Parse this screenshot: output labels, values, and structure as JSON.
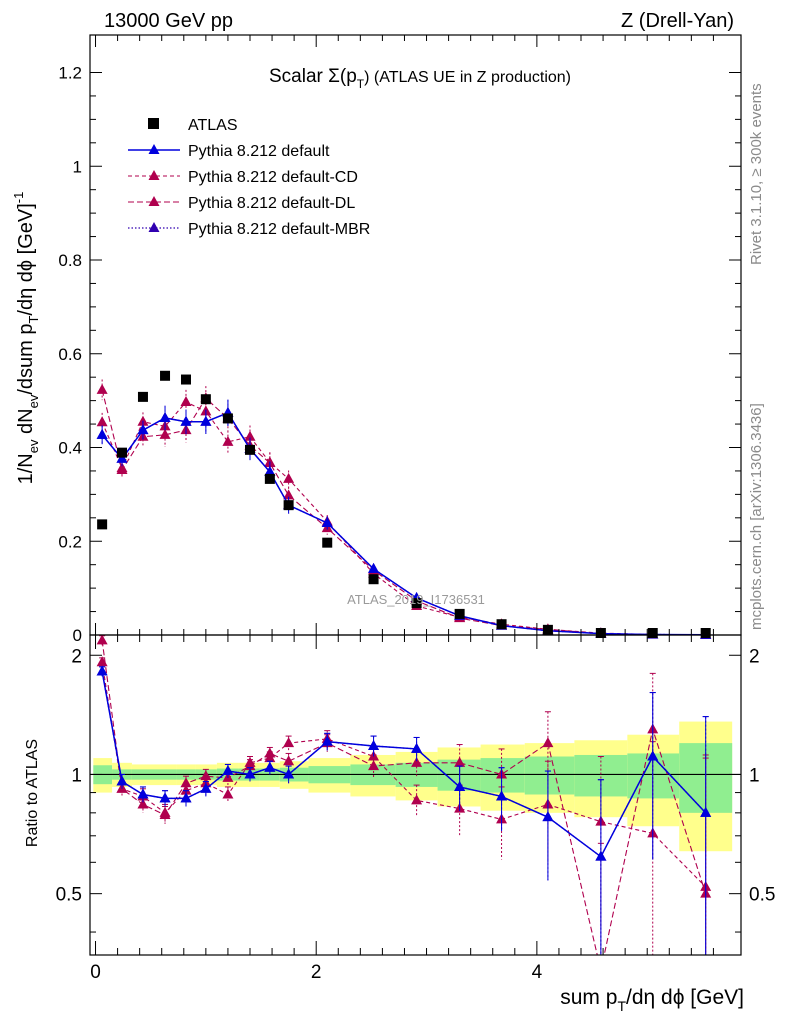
{
  "header": {
    "left": "13000 GeV pp",
    "right": "Z (Drell-Yan)"
  },
  "side": {
    "rivet": "Rivet 3.1.10, ≥ 300k events",
    "mcplots": "mcplots.cern.ch [arXiv:1306.3436]"
  },
  "watermark": "ATLAS_2019_I1736531",
  "colors": {
    "atlas": "#000000",
    "default": "#0000dd",
    "cd": "#b0004e",
    "dl": "#b0004e",
    "mbr": "#3000b0",
    "band_green": "#90ee90",
    "band_yellow": "#ffff8c"
  },
  "chart_data": [
    {
      "type": "scatter",
      "title": "Scalar Σ(p_T) (ATLAS UE in Z production)",
      "title_parts": {
        "prefix": "Scalar ",
        "sigma": "Σ(p",
        "sub": "T",
        "suffix": ") (ATLAS UE in Z production)"
      },
      "ylabel": "1/N_ev dN_ev/dsum p_T/dη dϕ [GeV]^-1",
      "ylim": [
        0,
        1.28
      ],
      "xlim": [
        -0.05,
        5.85
      ],
      "yticks": [
        0,
        0.2,
        0.4,
        0.6,
        0.8,
        1,
        1.2
      ],
      "ytick_labels": [
        "0",
        "0.2",
        "0.4",
        "0.6",
        "0.8",
        "1",
        "1.2"
      ],
      "legend_position": "top-left",
      "x": [
        0.06,
        0.24,
        0.43,
        0.63,
        0.82,
        1.0,
        1.2,
        1.4,
        1.58,
        1.75,
        2.1,
        2.52,
        2.91,
        3.3,
        3.68,
        4.1,
        4.58,
        5.05,
        5.53
      ],
      "series": [
        {
          "name": "ATLAS",
          "key": "atlas",
          "values": [
            0.236,
            0.389,
            0.508,
            0.553,
            0.545,
            0.503,
            0.462,
            0.395,
            0.333,
            0.277,
            0.197,
            0.119,
            0.068,
            0.045,
            0.023,
            0.011,
            0.004,
            0.001,
            0.0005
          ]
        },
        {
          "name": "Pythia 8.212 default",
          "key": "default",
          "values": [
            0.427,
            0.376,
            0.437,
            0.463,
            0.455,
            0.455,
            0.474,
            0.397,
            0.348,
            0.277,
            0.239,
            0.141,
            0.079,
            0.041,
            0.02,
            0.009,
            0.003,
            0.001,
            0.0005
          ],
          "errors": [
            0.02,
            0.016,
            0.02,
            0.026,
            0.026,
            0.026,
            0.028,
            0.024,
            0.022,
            0.018,
            0.014,
            0.008,
            0.005,
            0.003,
            0.002,
            0.001,
            0.0008,
            0.0006,
            0.0005
          ]
        },
        {
          "name": "Pythia 8.212 default-CD",
          "key": "cd",
          "values": [
            0.454,
            0.356,
            0.455,
            0.445,
            0.497,
            0.477,
            0.412,
            0.423,
            0.368,
            0.333,
            0.242,
            0.131,
            0.062,
            0.038,
            0.023,
            0.012,
            0.004,
            0.001,
            0.0002
          ],
          "errors": [
            0.02,
            0.016,
            0.02,
            0.026,
            0.026,
            0.026,
            0.024,
            0.024,
            0.022,
            0.018,
            0.014,
            0.008,
            0.005,
            0.003,
            0.002,
            0.001,
            0.0008,
            0.0006,
            0.0005
          ]
        },
        {
          "name": "Pythia 8.212 default-DL",
          "key": "dl",
          "values": [
            0.523,
            0.352,
            0.423,
            0.427,
            0.437,
            0.505,
            0.462,
            0.404,
            0.367,
            0.298,
            0.228,
            0.138,
            0.073,
            0.036,
            0.02,
            0.012,
            0.003,
            0.0008,
            0.0003
          ],
          "errors": [
            0.022,
            0.016,
            0.02,
            0.026,
            0.026,
            0.026,
            0.026,
            0.024,
            0.022,
            0.018,
            0.014,
            0.008,
            0.005,
            0.003,
            0.002,
            0.001,
            0.0008,
            0.0006,
            0.0005
          ]
        },
        {
          "name": "Pythia 8.212 default-MBR",
          "key": "mbr",
          "values": [
            0.427,
            0.376,
            0.437,
            0.463,
            0.455,
            0.455,
            0.474,
            0.397,
            0.348,
            0.277,
            0.239,
            0.141,
            0.079,
            0.041,
            0.02,
            0.009,
            0.003,
            0.001,
            0.0005
          ],
          "errors": [
            0.02,
            0.016,
            0.02,
            0.026,
            0.026,
            0.026,
            0.028,
            0.024,
            0.022,
            0.018,
            0.014,
            0.008,
            0.005,
            0.003,
            0.002,
            0.001,
            0.0008,
            0.0006,
            0.0005
          ]
        }
      ]
    },
    {
      "type": "scatter",
      "title": "",
      "ylabel": "Ratio to ATLAS",
      "xlabel": "sum p_T/dη dϕ [GeV]",
      "xlabel_parts": {
        "prefix": "sum p",
        "sub": "T",
        "suffix": "/dη dϕ [GeV]"
      },
      "ylim": [
        0.35,
        2.25
      ],
      "xlim": [
        -0.05,
        5.85
      ],
      "yticks": [
        0.5,
        1,
        2
      ],
      "ytick_labels": [
        "0.5",
        "1",
        "2"
      ],
      "xticks": [
        0,
        2,
        4
      ],
      "xtick_labels": [
        "0",
        "2",
        "4"
      ],
      "reference_line": 1,
      "bins": [
        [
          -0.02,
          0.15
        ],
        [
          0.15,
          0.33
        ],
        [
          0.33,
          0.53
        ],
        [
          0.53,
          0.73
        ],
        [
          0.73,
          0.91
        ],
        [
          0.91,
          1.1
        ],
        [
          1.1,
          1.3
        ],
        [
          1.3,
          1.49
        ],
        [
          1.49,
          1.67
        ],
        [
          1.67,
          1.93
        ],
        [
          1.93,
          2.31
        ],
        [
          2.31,
          2.72
        ],
        [
          2.72,
          3.1
        ],
        [
          3.1,
          3.49
        ],
        [
          3.49,
          3.89
        ],
        [
          3.89,
          4.34
        ],
        [
          4.34,
          4.82
        ],
        [
          4.82,
          5.29
        ],
        [
          5.29,
          5.77
        ]
      ],
      "band_inner": [
        0.055,
        0.03,
        0.03,
        0.03,
        0.03,
        0.03,
        0.035,
        0.035,
        0.035,
        0.04,
        0.05,
        0.06,
        0.07,
        0.09,
        0.1,
        0.11,
        0.12,
        0.13,
        0.2
      ],
      "band_outer": [
        0.1,
        0.07,
        0.06,
        0.06,
        0.06,
        0.06,
        0.07,
        0.07,
        0.07,
        0.08,
        0.1,
        0.12,
        0.14,
        0.17,
        0.19,
        0.2,
        0.22,
        0.26,
        0.36
      ],
      "x": [
        0.06,
        0.24,
        0.43,
        0.63,
        0.82,
        1.0,
        1.2,
        1.4,
        1.58,
        1.75,
        2.1,
        2.52,
        2.91,
        3.3,
        3.68,
        4.1,
        4.58,
        5.05,
        5.53
      ],
      "series": [
        {
          "name": "Pythia 8.212 default",
          "key": "default",
          "values": [
            1.82,
            0.96,
            0.89,
            0.87,
            0.87,
            0.92,
            1.02,
            1.0,
            1.04,
            1.0,
            1.21,
            1.18,
            1.16,
            0.93,
            0.88,
            0.78,
            0.62,
            1.11,
            0.8
          ],
          "errors": [
            0.05,
            0.04,
            0.04,
            0.04,
            0.04,
            0.04,
            0.04,
            0.04,
            0.04,
            0.05,
            0.06,
            0.07,
            0.08,
            0.12,
            0.16,
            0.24,
            0.35,
            0.5,
            0.6
          ]
        },
        {
          "name": "Pythia 8.212 default-CD",
          "key": "cd",
          "values": [
            1.92,
            0.92,
            0.88,
            0.8,
            0.91,
            0.95,
            0.89,
            1.07,
            1.1,
            1.2,
            1.23,
            1.11,
            0.86,
            0.82,
            0.77,
            0.84,
            0.76,
            0.71,
            0.52
          ],
          "errors": [
            0.05,
            0.04,
            0.04,
            0.04,
            0.04,
            0.04,
            0.04,
            0.04,
            0.04,
            0.05,
            0.06,
            0.07,
            0.08,
            0.12,
            0.16,
            0.24,
            0.35,
            0.5,
            0.6
          ]
        },
        {
          "name": "Pythia 8.212 default-DL",
          "key": "dl",
          "values": [
            2.18,
            0.92,
            0.84,
            0.79,
            0.95,
            0.99,
            0.98,
            1.05,
            1.13,
            1.08,
            1.2,
            1.05,
            1.07,
            1.07,
            1.0,
            1.2,
            0.32,
            1.3,
            0.5
          ],
          "errors": [
            0.06,
            0.04,
            0.04,
            0.04,
            0.04,
            0.04,
            0.04,
            0.04,
            0.04,
            0.05,
            0.06,
            0.07,
            0.08,
            0.12,
            0.16,
            0.24,
            0.35,
            0.5,
            0.6
          ]
        },
        {
          "name": "Pythia 8.212 default-MBR",
          "key": "mbr",
          "values": [
            1.82,
            0.96,
            0.89,
            0.87,
            0.87,
            0.92,
            1.02,
            1.0,
            1.04,
            1.0,
            1.21,
            1.18,
            1.16,
            0.93,
            0.88,
            0.78,
            0.62,
            1.11,
            0.8
          ],
          "errors": [
            0.05,
            0.04,
            0.04,
            0.04,
            0.04,
            0.04,
            0.04,
            0.04,
            0.04,
            0.05,
            0.06,
            0.07,
            0.08,
            0.12,
            0.16,
            0.24,
            0.35,
            0.5,
            0.6
          ]
        }
      ]
    }
  ]
}
